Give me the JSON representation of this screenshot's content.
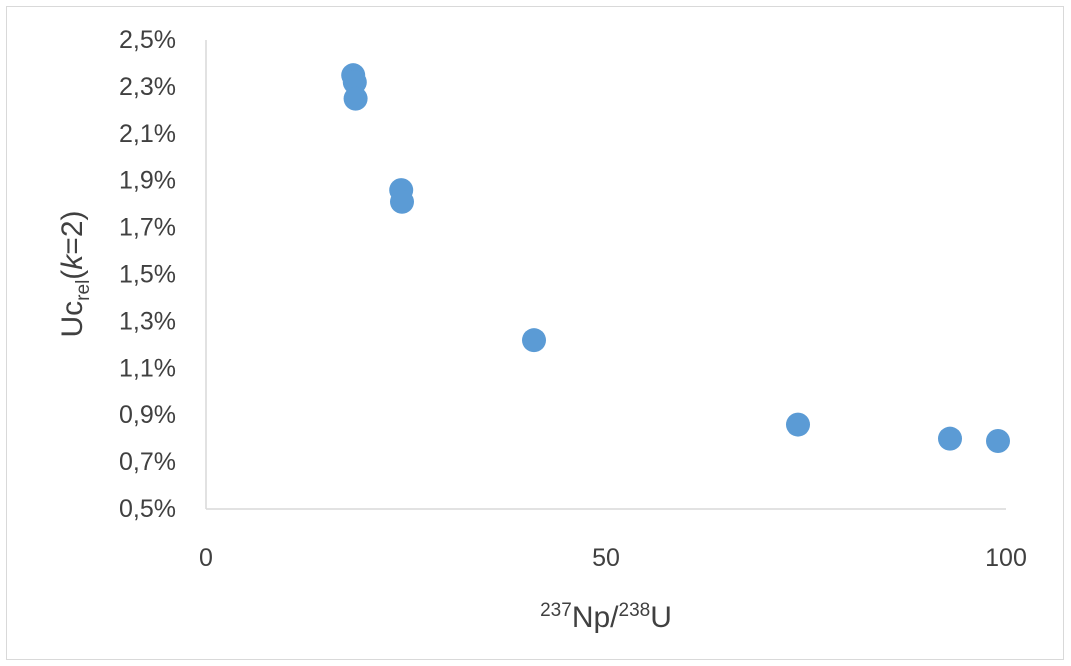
{
  "chart_data": {
    "type": "scatter",
    "title": "",
    "xlabel": {
      "parts": [
        {
          "text": "237",
          "style": "sup"
        },
        {
          "text": "Np/",
          "style": "normal"
        },
        {
          "text": "238",
          "style": "sup"
        },
        {
          "text": "U",
          "style": "normal"
        }
      ]
    },
    "ylabel": {
      "parts": [
        {
          "text": "Uc",
          "style": "normal"
        },
        {
          "text": "rel",
          "style": "sub"
        },
        {
          "text": "(",
          "style": "normal"
        },
        {
          "text": "k",
          "style": "italic"
        },
        {
          "text": "=2)",
          "style": "normal"
        }
      ]
    },
    "xlim": [
      0,
      100
    ],
    "ylim": [
      0.005,
      0.025
    ],
    "x_ticks": [
      {
        "value": 0,
        "label": "0"
      },
      {
        "value": 50,
        "label": "50"
      },
      {
        "value": 100,
        "label": "100"
      }
    ],
    "y_ticks": [
      {
        "value": 0.005,
        "label": "0,5%"
      },
      {
        "value": 0.007,
        "label": "0,7%"
      },
      {
        "value": 0.009,
        "label": "0,9%"
      },
      {
        "value": 0.011,
        "label": "1,1%"
      },
      {
        "value": 0.013,
        "label": "1,3%"
      },
      {
        "value": 0.015,
        "label": "1,5%"
      },
      {
        "value": 0.017,
        "label": "1,7%"
      },
      {
        "value": 0.019,
        "label": "1,9%"
      },
      {
        "value": 0.021,
        "label": "2,1%"
      },
      {
        "value": 0.023,
        "label": "2,3%"
      },
      {
        "value": 0.025,
        "label": "2,5%"
      }
    ],
    "grid": false,
    "legend": "none",
    "series": [
      {
        "color": "#5b9bd5",
        "points": [
          {
            "x": 18.4,
            "y": 0.0235
          },
          {
            "x": 18.6,
            "y": 0.0232
          },
          {
            "x": 18.7,
            "y": 0.0225
          },
          {
            "x": 24.4,
            "y": 0.0186
          },
          {
            "x": 24.5,
            "y": 0.0181
          },
          {
            "x": 41.0,
            "y": 0.0122
          },
          {
            "x": 74.0,
            "y": 0.0086
          },
          {
            "x": 93.0,
            "y": 0.008
          },
          {
            "x": 99.0,
            "y": 0.0079
          }
        ]
      }
    ],
    "axis_color": "#d9d9d9",
    "text_color": "#404040"
  }
}
